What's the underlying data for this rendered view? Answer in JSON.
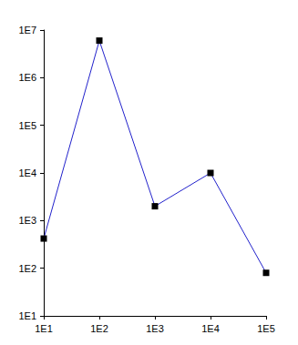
{
  "chart_data": {
    "type": "line",
    "x": [
      10,
      100,
      1000,
      10000,
      100000
    ],
    "series": [
      {
        "color": "#2222cc",
        "marker": "square",
        "values": [
          420,
          6000000,
          2000,
          10000,
          80
        ]
      }
    ],
    "xlim": [
      10,
      100000
    ],
    "xticks": [
      {
        "value": 10,
        "label": "1E1"
      },
      {
        "value": 100,
        "label": "1E2"
      },
      {
        "value": 1000,
        "label": "1E3"
      },
      {
        "value": 10000,
        "label": "1E4"
      },
      {
        "value": 100000,
        "label": "1E5"
      }
    ],
    "ylim": [
      10,
      10000000
    ],
    "yticks": [
      {
        "value": 10,
        "label": "1E1"
      },
      {
        "value": 100,
        "label": "1E2"
      },
      {
        "value": 1000,
        "label": "1E3"
      },
      {
        "value": 10000,
        "label": "1E4"
      },
      {
        "value": 100000,
        "label": "1E5"
      },
      {
        "value": 1000000,
        "label": "1E6"
      },
      {
        "value": 10000000,
        "label": "1E7"
      }
    ],
    "log": true,
    "grid": false
  }
}
